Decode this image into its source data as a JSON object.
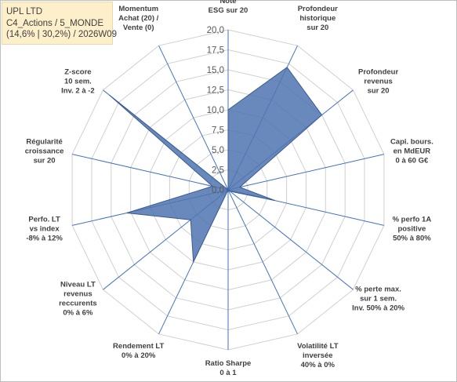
{
  "info": {
    "line1": "UPL LTD",
    "line2": "C4_Actions / 5_MONDE",
    "line3": "(14,6% | 30,2%) / 2026W09"
  },
  "colors": {
    "fill": "#4f74b0",
    "stroke": "#3b5b93",
    "spoke": "#4472c4",
    "grid": "#d0d0d0",
    "info_bg": "#fcefc9"
  },
  "chart_data": {
    "type": "radar",
    "r_range": [
      0,
      20
    ],
    "grid": true,
    "ticks": [
      "0,0",
      "2,5",
      "5,0",
      "7,5",
      "10,0",
      "12,5",
      "15,0",
      "17,5",
      "20,0"
    ],
    "axes": [
      {
        "lines": [
          "Note",
          "ESG sur 20"
        ]
      },
      {
        "lines": [
          "Profondeur",
          "historique",
          "sur 20"
        ]
      },
      {
        "lines": [
          "Profondeur",
          "revenus",
          "sur 20"
        ]
      },
      {
        "lines": [
          "Capi. bours.",
          "en MdEUR",
          "0 à 60 G€"
        ]
      },
      {
        "lines": [
          "% perfo 1A",
          "positive",
          "50% à 80%"
        ]
      },
      {
        "lines": [
          "% perte max.",
          "sur 1 sem.",
          "Inv. 50% à 20%"
        ]
      },
      {
        "lines": [
          "Volatilité LT",
          "inversée",
          "40% à 0%"
        ]
      },
      {
        "lines": [
          "Ratio Sharpe",
          "0 à 1"
        ]
      },
      {
        "lines": [
          "Rendement LT",
          "0% à 20%"
        ]
      },
      {
        "lines": [
          "Niveau LT",
          "revenus",
          "reccurents",
          "0% à 6%"
        ]
      },
      {
        "lines": [
          "Perfo. LT",
          "vs index",
          "-8% à 12%"
        ]
      },
      {
        "lines": [
          "Régularité",
          "croissance",
          "sur 20"
        ]
      },
      {
        "lines": [
          "Z-score",
          "10 sem.",
          "Inv. 2 à -2"
        ]
      },
      {
        "lines": [
          "Momentum",
          "Achat (20) /",
          "Vente (0)"
        ]
      }
    ],
    "series": [
      {
        "values": [
          10.0,
          17.0,
          15.0,
          1.5,
          6.0,
          0.3,
          0.0,
          0.0,
          10.0,
          6.0,
          13.0,
          2.0,
          19.0,
          0.0
        ]
      }
    ]
  }
}
